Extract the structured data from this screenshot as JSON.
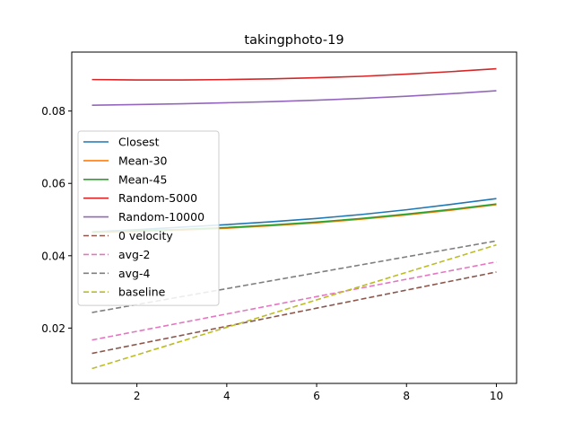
{
  "chart_data": {
    "type": "line",
    "title": "takingphoto-19",
    "xlabel": "",
    "ylabel": "",
    "xlim": [
      0.55,
      10.45
    ],
    "ylim": [
      0.0047,
      0.0963
    ],
    "xticks": [
      2,
      4,
      6,
      8,
      10
    ],
    "xtick_labels": [
      "2",
      "4",
      "6",
      "8",
      "10"
    ],
    "yticks": [
      0.02,
      0.04,
      0.06,
      0.08
    ],
    "ytick_labels": [
      "0.02",
      "0.04",
      "0.06",
      "0.08"
    ],
    "grid": false,
    "legend_position": "center-left",
    "x": [
      1,
      2,
      3,
      4,
      5,
      6,
      7,
      8,
      9,
      10
    ],
    "series": [
      {
        "name": "Closest",
        "color": "#1f77b4",
        "dash": "solid",
        "values": [
          0.0466,
          0.0472,
          0.0479,
          0.0486,
          0.0494,
          0.0503,
          0.0514,
          0.0527,
          0.0542,
          0.0558
        ]
      },
      {
        "name": "Mean-30",
        "color": "#ff7f0e",
        "dash": "solid",
        "values": [
          0.0464,
          0.0467,
          0.0471,
          0.0476,
          0.0483,
          0.0491,
          0.0501,
          0.0513,
          0.0526,
          0.0541
        ]
      },
      {
        "name": "Mean-45",
        "color": "#2ca02c",
        "dash": "solid",
        "values": [
          0.0466,
          0.0469,
          0.0473,
          0.0478,
          0.0485,
          0.0493,
          0.0503,
          0.0515,
          0.0528,
          0.0543
        ]
      },
      {
        "name": "Random-5000",
        "color": "#d62728",
        "dash": "solid",
        "values": [
          0.0887,
          0.0886,
          0.0886,
          0.0887,
          0.0889,
          0.0892,
          0.0896,
          0.0902,
          0.0909,
          0.0917
        ]
      },
      {
        "name": "Random-10000",
        "color": "#9467bd",
        "dash": "solid",
        "values": [
          0.0816,
          0.0818,
          0.082,
          0.0823,
          0.0826,
          0.083,
          0.0835,
          0.0841,
          0.0848,
          0.0856
        ]
      },
      {
        "name": "0 velocity",
        "color": "#8c564b",
        "dash": "dashed",
        "values": [
          0.013,
          0.0155,
          0.018,
          0.0205,
          0.023,
          0.0255,
          0.028,
          0.0305,
          0.033,
          0.0355
        ]
      },
      {
        "name": "avg-2",
        "color": "#e377c2",
        "dash": "dashed",
        "values": [
          0.0167,
          0.0191,
          0.0215,
          0.0239,
          0.0263,
          0.0287,
          0.0311,
          0.0335,
          0.0359,
          0.0383
        ]
      },
      {
        "name": "avg-4",
        "color": "#7f7f7f",
        "dash": "dashed",
        "values": [
          0.0243,
          0.0265,
          0.0287,
          0.0309,
          0.0331,
          0.0353,
          0.0375,
          0.0397,
          0.0419,
          0.0441
        ]
      },
      {
        "name": "baseline",
        "color": "#bcbd22",
        "dash": "dashed",
        "values": [
          0.0088,
          0.0126,
          0.0164,
          0.0202,
          0.024,
          0.0278,
          0.0316,
          0.0354,
          0.0392,
          0.043
        ]
      }
    ]
  }
}
